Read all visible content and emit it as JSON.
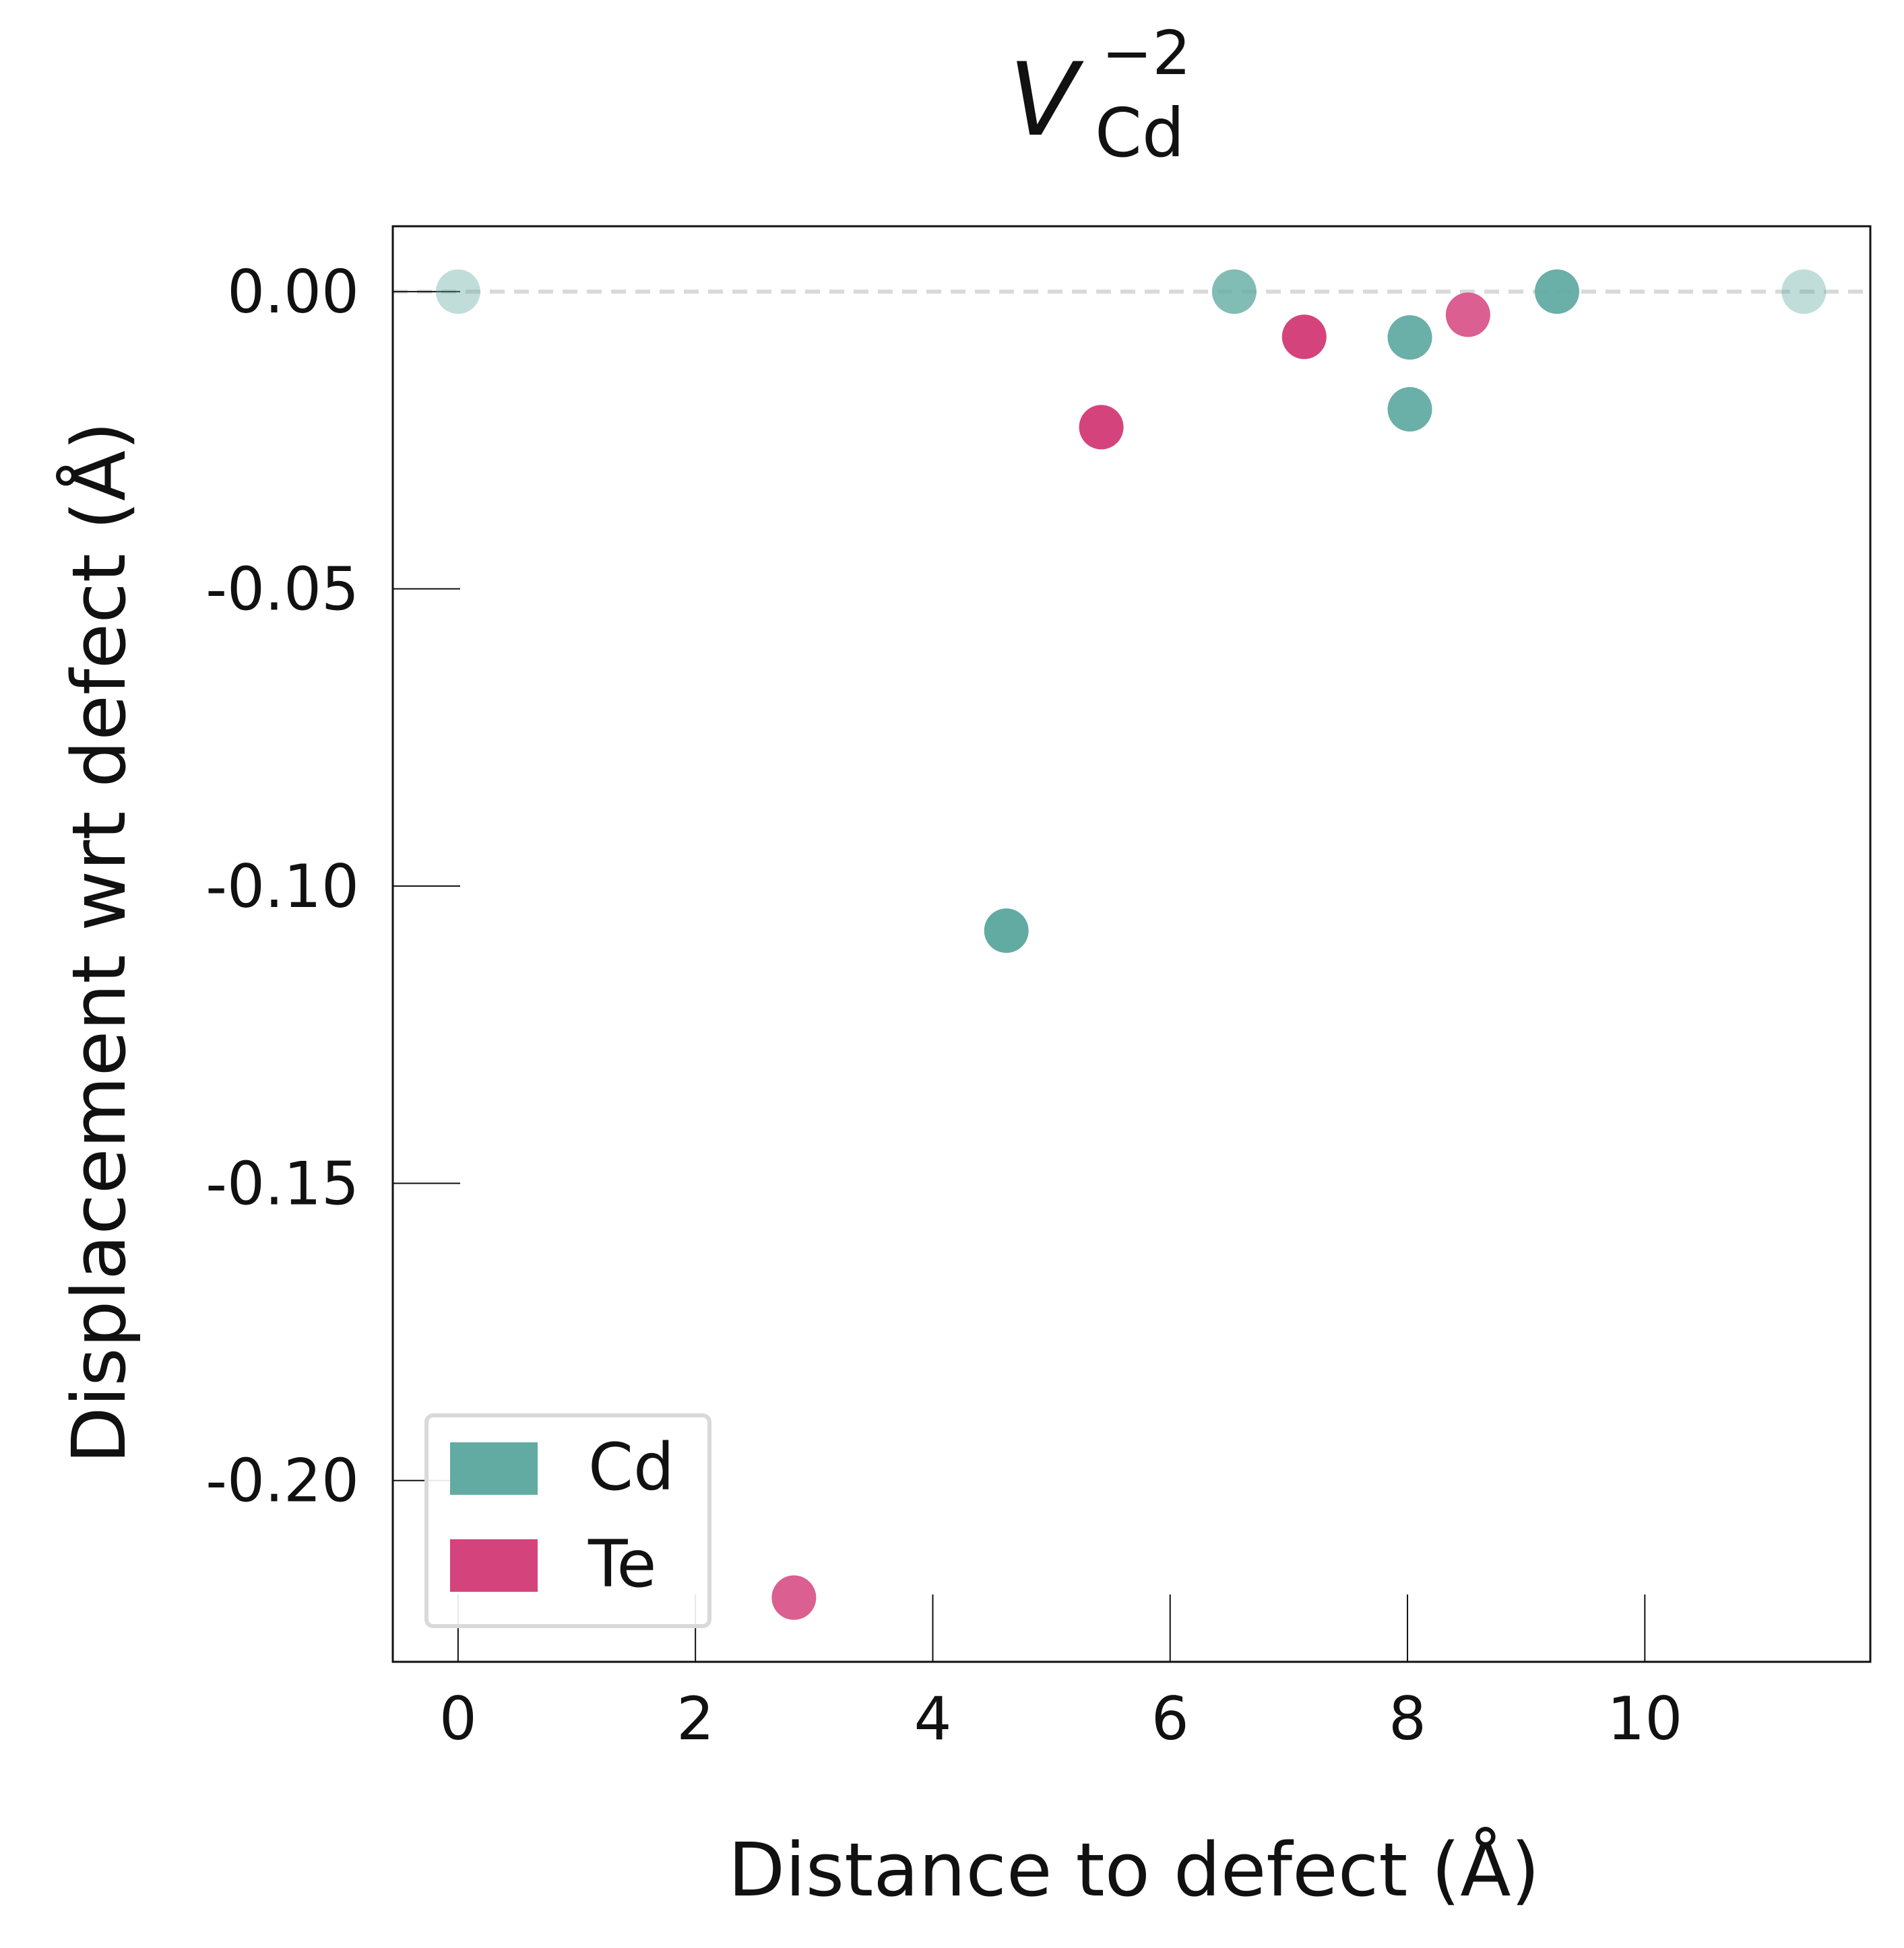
{
  "chart_data": {
    "type": "scatter",
    "title": {
      "base": "V",
      "superscript": "−2",
      "subscript": "Cd"
    },
    "xlabel": "Distance to defect (Å)",
    "ylabel": "Displacement wrt defect (Å)",
    "xlim": [
      -0.55,
      11.9
    ],
    "ylim": [
      -0.2305,
      0.011
    ],
    "xticks": [
      0,
      2,
      4,
      6,
      8,
      10
    ],
    "xtick_labels": [
      "0",
      "2",
      "4",
      "6",
      "8",
      "10"
    ],
    "yticks": [
      0.0,
      -0.05,
      -0.1,
      -0.15,
      -0.2
    ],
    "ytick_labels": [
      "0.00",
      "-0.05",
      "-0.10",
      "-0.15",
      "-0.20"
    ],
    "grid": false,
    "reference_line": {
      "y": 0.0,
      "style": "dashed",
      "color": "#d9d9d9"
    },
    "legend": {
      "position": "lower-left",
      "entries": [
        {
          "label": "Cd",
          "color": "#62aba3"
        },
        {
          "label": "Te",
          "color": "#d5437c"
        }
      ]
    },
    "series": [
      {
        "name": "Cd",
        "color": "#62aba3",
        "points": [
          {
            "x": 0.0,
            "y": 0.0,
            "alpha": 0.4
          },
          {
            "x": 4.62,
            "y": -0.1075,
            "alpha": 1.0
          },
          {
            "x": 6.54,
            "y": 0.0,
            "alpha": 0.8
          },
          {
            "x": 8.02,
            "y": -0.0077,
            "alpha": 0.95
          },
          {
            "x": 8.02,
            "y": -0.0198,
            "alpha": 0.95
          },
          {
            "x": 9.26,
            "y": 0.0,
            "alpha": 0.95
          },
          {
            "x": 11.34,
            "y": 0.0,
            "alpha": 0.4
          }
        ]
      },
      {
        "name": "Te",
        "color": "#d5437c",
        "points": [
          {
            "x": 2.83,
            "y": -0.2197,
            "alpha": 0.85
          },
          {
            "x": 5.42,
            "y": -0.0228,
            "alpha": 1.0
          },
          {
            "x": 7.13,
            "y": -0.0076,
            "alpha": 1.0
          },
          {
            "x": 8.51,
            "y": -0.0039,
            "alpha": 0.85
          }
        ]
      }
    ]
  }
}
